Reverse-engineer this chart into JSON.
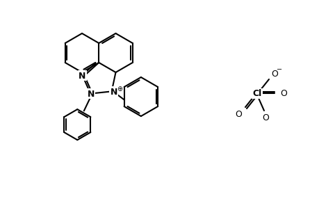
{
  "bg_color": "#ffffff",
  "line_color": "#000000",
  "line_width": 1.5,
  "font_size": 9
}
